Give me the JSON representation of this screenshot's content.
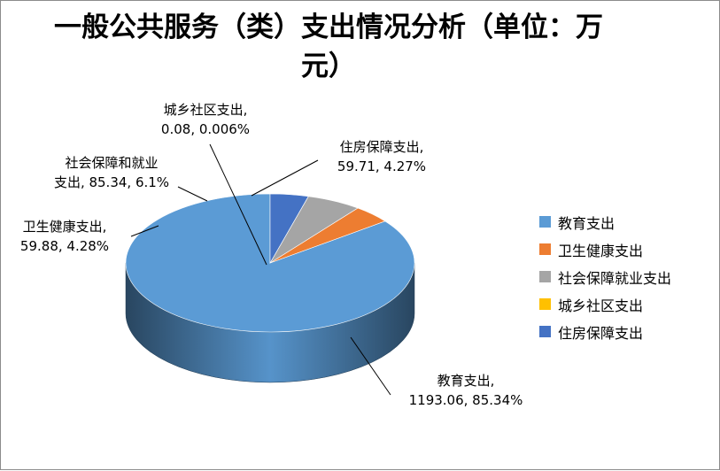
{
  "chart_data": {
    "type": "pie",
    "title": "一般公共服务（类）支出情况分析（单位：万元）",
    "categories": [
      "教育支出",
      "卫生健康支出",
      "社会保障就业支出",
      "城乡社区支出",
      "住房保障支出"
    ],
    "values": [
      1193.06,
      59.88,
      85.34,
      0.08,
      59.71
    ],
    "percent_labels": [
      "85.34%",
      "4.28%",
      "6.1%",
      "0.006%",
      "4.27%"
    ],
    "data_labels": [
      [
        "教育支出,",
        "1193.06, 85.34%"
      ],
      [
        "卫生健康支出,",
        "59.88, 4.28%"
      ],
      [
        "社会保障和就业",
        "支出, 85.34, 6.1%"
      ],
      [
        "城乡社区支出,",
        "0.08, 0.006%"
      ],
      [
        "住房保障支出,",
        "59.71, 4.27%"
      ]
    ],
    "colors": [
      "#5b9bd5",
      "#ed7d31",
      "#a5a5a5",
      "#ffc000",
      "#4472c4"
    ],
    "legend_position": "right"
  }
}
